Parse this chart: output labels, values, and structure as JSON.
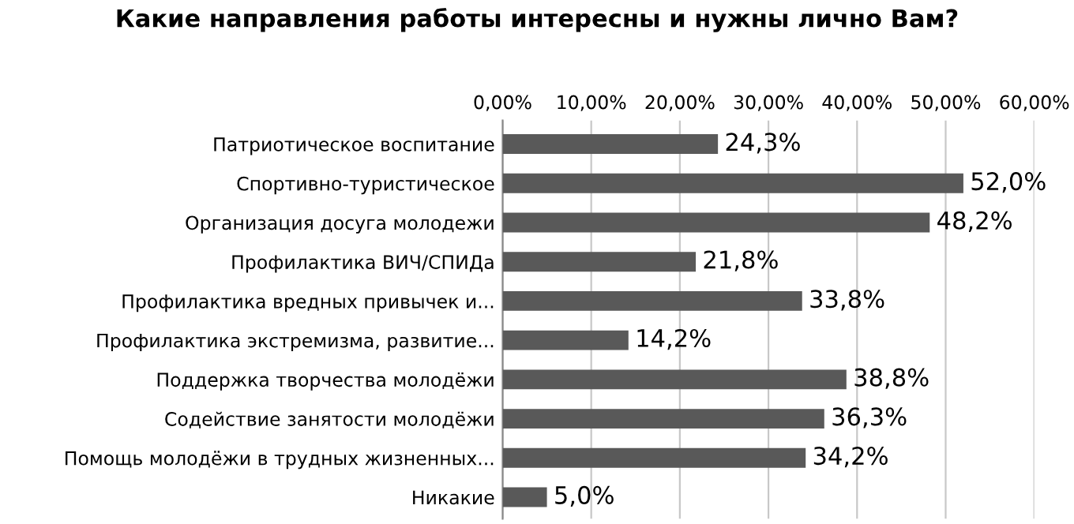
{
  "chart_data": {
    "type": "bar",
    "orientation": "horizontal",
    "title": "Какие направления работы интересны и нужны лично Вам?",
    "categories": [
      "Патриотическое воспитание",
      "Спортивно-туристическое",
      "Организация досуга молодежи",
      "Профилактика ВИЧ/СПИДа",
      "Профилактика вредных привычек и...",
      "Профилактика экстремизма, развитие...",
      "Поддержка творчества молодёжи",
      "Содействие занятости молодёжи",
      "Помощь молодёжи в трудных жизненных...",
      "Никакие"
    ],
    "values": [
      24.3,
      52.0,
      48.2,
      21.8,
      33.8,
      14.2,
      38.8,
      36.3,
      34.2,
      5.0
    ],
    "value_labels": [
      "24,3%",
      "52,0%",
      "48,2%",
      "21,8%",
      "33,8%",
      "14,2%",
      "38,8%",
      "36,3%",
      "34,2%",
      "5,0%"
    ],
    "color": "#595959",
    "xlim": [
      0,
      60
    ],
    "xticks": [
      {
        "value": 0,
        "label": "0,00%"
      },
      {
        "value": 10,
        "label": "10,00%"
      },
      {
        "value": 20,
        "label": "20,00%"
      },
      {
        "value": 30,
        "label": "30,00%"
      },
      {
        "value": 40,
        "label": "40,00%"
      },
      {
        "value": 50,
        "label": "50,00%"
      },
      {
        "value": 60,
        "label": "60,00%"
      }
    ],
    "grid": "x"
  }
}
